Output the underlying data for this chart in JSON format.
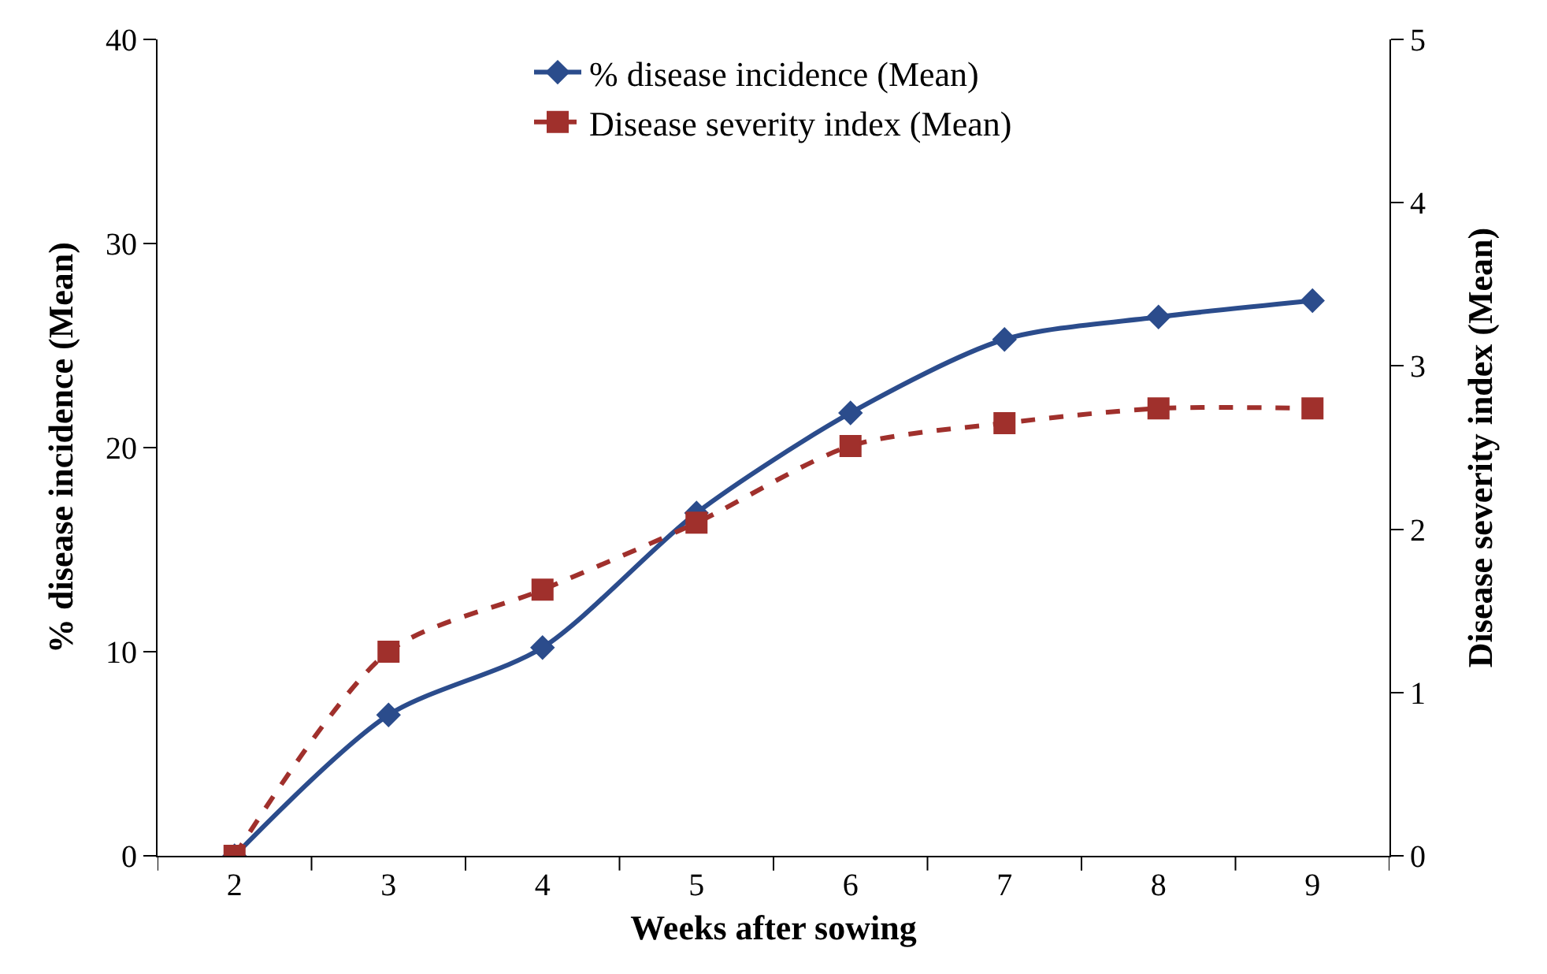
{
  "chart_data": {
    "type": "line",
    "xlabel": "Weeks after sowing",
    "ylabel": "% disease incidence (Mean)",
    "y2label": "Disease severity index (Mean)",
    "categories": [
      "2",
      "3",
      "4",
      "5",
      "6",
      "7",
      "8",
      "9"
    ],
    "series": [
      {
        "name": "% disease incidence (Mean)",
        "color": "#2b4c8c",
        "marker": "diamond",
        "line_style": "solid",
        "values": [
          0,
          6.9,
          10.2,
          16.8,
          21.7,
          25.3,
          26.4,
          27.2
        ]
      },
      {
        "name": "Disease severity index (Mean)",
        "color": "#a0302c",
        "marker": "square",
        "line_style": "dashed",
        "axis": "y2",
        "values": [
          0,
          1.25,
          1.63,
          2.04,
          2.51,
          2.65,
          2.74,
          2.74
        ]
      }
    ],
    "ylim": [
      0,
      40
    ],
    "yticks": [
      0,
      10,
      20,
      30,
      40
    ],
    "y2lim": [
      0,
      5
    ],
    "y2ticks": [
      0,
      1,
      2,
      3,
      4,
      5
    ],
    "grid": false,
    "legend": "top"
  }
}
